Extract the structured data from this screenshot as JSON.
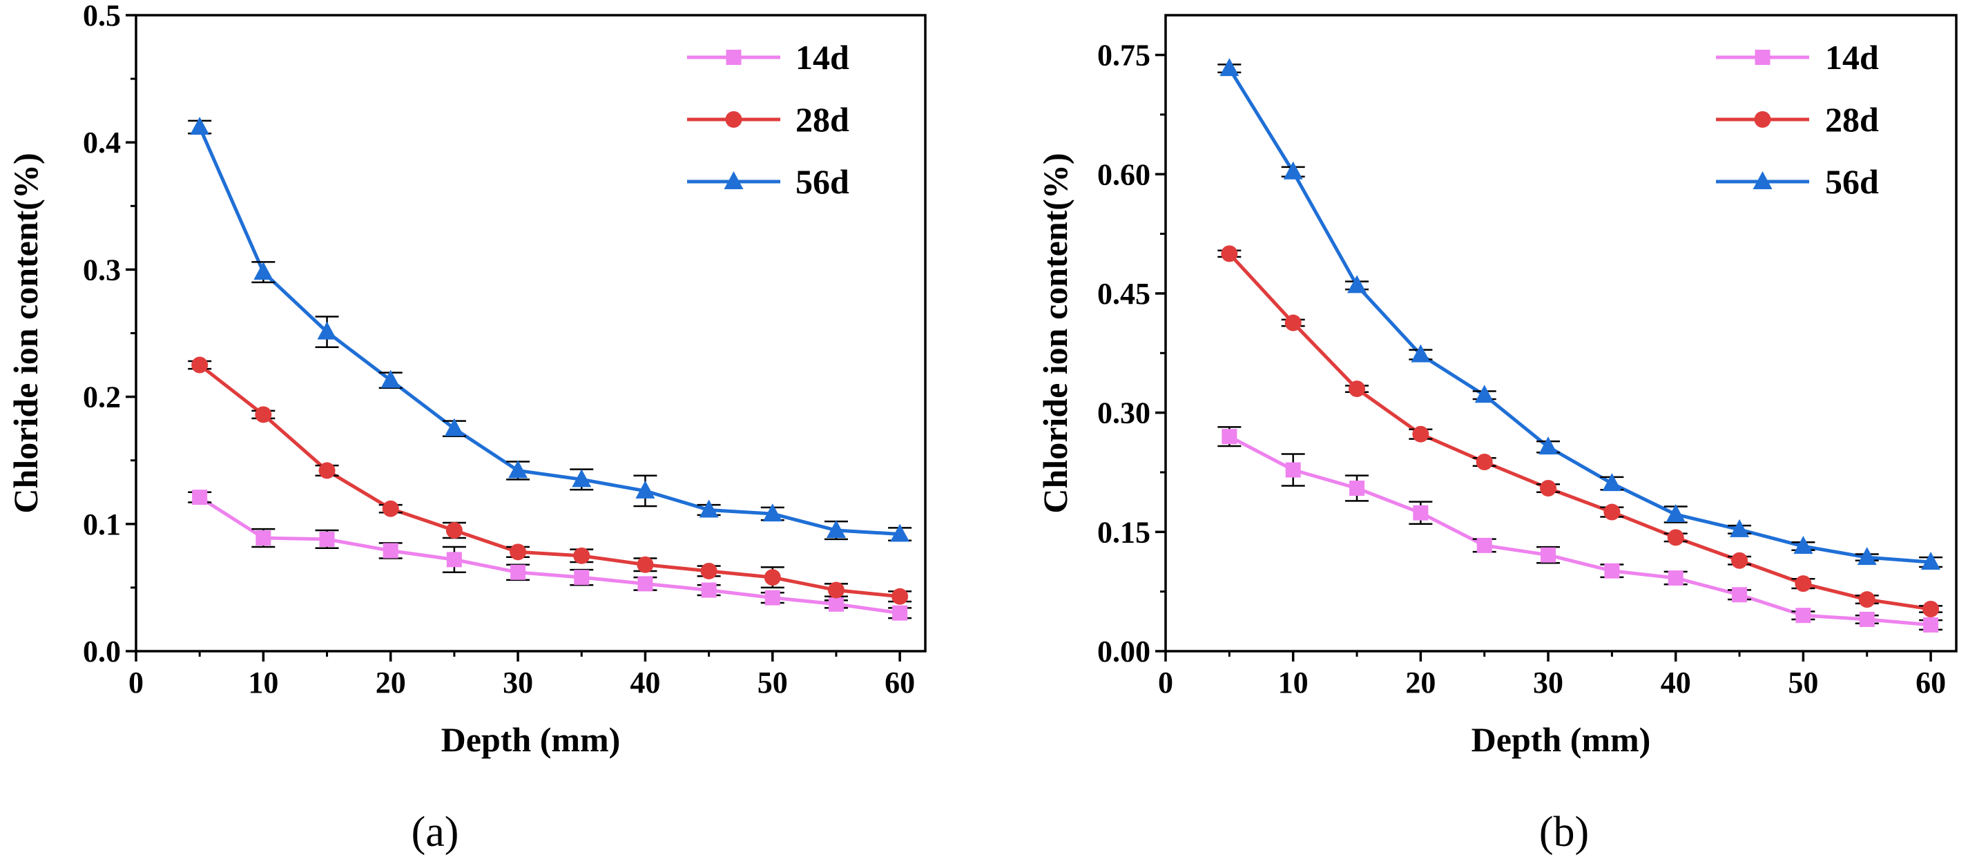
{
  "chart_data": [
    {
      "type": "line",
      "panel_label": "(a)",
      "xlabel": "Depth (mm)",
      "ylabel": "Chloride ion content(%)",
      "xlim": [
        0,
        62
      ],
      "ylim": [
        0,
        0.5
      ],
      "xticks": [
        0,
        10,
        20,
        30,
        40,
        50,
        60
      ],
      "xtick_labels": [
        "0",
        "10",
        "20",
        "30",
        "40",
        "50",
        "60"
      ],
      "yticks": [
        0,
        0.1,
        0.2,
        0.3,
        0.4,
        0.5
      ],
      "ytick_labels": [
        "0.0",
        "0.1",
        "0.2",
        "0.3",
        "0.4",
        "0.5"
      ],
      "legend_position": "top-right",
      "x": [
        5,
        10,
        15,
        20,
        25,
        30,
        35,
        40,
        45,
        50,
        55,
        60
      ],
      "series": [
        {
          "name": "14d",
          "color": "#ee82ee",
          "marker": "square",
          "values": [
            0.121,
            0.089,
            0.088,
            0.079,
            0.072,
            0.062,
            0.058,
            0.053,
            0.048,
            0.042,
            0.037,
            0.03
          ],
          "errors": [
            0.004,
            0.007,
            0.007,
            0.006,
            0.01,
            0.006,
            0.006,
            0.005,
            0.004,
            0.004,
            0.003,
            0.004
          ]
        },
        {
          "name": "28d",
          "color": "#e03c3c",
          "marker": "circle",
          "values": [
            0.225,
            0.186,
            0.142,
            0.112,
            0.095,
            0.078,
            0.075,
            0.068,
            0.063,
            0.058,
            0.048,
            0.043
          ],
          "errors": [
            0.003,
            0.003,
            0.004,
            0.003,
            0.006,
            0.004,
            0.005,
            0.005,
            0.004,
            0.008,
            0.005,
            0.004
          ]
        },
        {
          "name": "56d",
          "color": "#1f6fd6",
          "marker": "triangle",
          "values": [
            0.412,
            0.298,
            0.251,
            0.213,
            0.175,
            0.142,
            0.135,
            0.126,
            0.111,
            0.108,
            0.095,
            0.092
          ],
          "errors": [
            0.005,
            0.008,
            0.012,
            0.006,
            0.006,
            0.007,
            0.008,
            0.012,
            0.004,
            0.005,
            0.007,
            0.005
          ]
        }
      ]
    },
    {
      "type": "line",
      "panel_label": "(b)",
      "xlabel": "Depth (mm)",
      "ylabel": "Chloride ion content(%)",
      "xlim": [
        0,
        62
      ],
      "ylim": [
        0,
        0.8
      ],
      "xticks": [
        0,
        10,
        20,
        30,
        40,
        50,
        60
      ],
      "xtick_labels": [
        "0",
        "10",
        "20",
        "30",
        "40",
        "50",
        "60"
      ],
      "yticks": [
        0,
        0.15,
        0.3,
        0.45,
        0.6,
        0.75
      ],
      "ytick_labels": [
        "0.00",
        "0.15",
        "0.30",
        "0.45",
        "0.60",
        "0.75"
      ],
      "legend_position": "top-right",
      "x": [
        5,
        10,
        15,
        20,
        25,
        30,
        35,
        40,
        45,
        50,
        55,
        60
      ],
      "series": [
        {
          "name": "14d",
          "color": "#ee82ee",
          "marker": "square",
          "values": [
            0.27,
            0.228,
            0.205,
            0.174,
            0.133,
            0.121,
            0.101,
            0.092,
            0.071,
            0.045,
            0.04,
            0.033
          ],
          "errors": [
            0.012,
            0.02,
            0.016,
            0.014,
            0.008,
            0.01,
            0.008,
            0.008,
            0.006,
            0.005,
            0.005,
            0.006
          ]
        },
        {
          "name": "28d",
          "color": "#e03c3c",
          "marker": "circle",
          "values": [
            0.5,
            0.413,
            0.33,
            0.273,
            0.238,
            0.205,
            0.175,
            0.143,
            0.114,
            0.085,
            0.065,
            0.053
          ],
          "errors": [
            0.004,
            0.004,
            0.004,
            0.006,
            0.005,
            0.005,
            0.006,
            0.005,
            0.005,
            0.006,
            0.005,
            0.004
          ]
        },
        {
          "name": "56d",
          "color": "#1f6fd6",
          "marker": "triangle",
          "values": [
            0.733,
            0.603,
            0.46,
            0.373,
            0.322,
            0.257,
            0.211,
            0.172,
            0.153,
            0.132,
            0.118,
            0.112
          ],
          "errors": [
            0.005,
            0.006,
            0.005,
            0.006,
            0.005,
            0.007,
            0.008,
            0.01,
            0.005,
            0.005,
            0.004,
            0.006
          ]
        }
      ]
    }
  ]
}
